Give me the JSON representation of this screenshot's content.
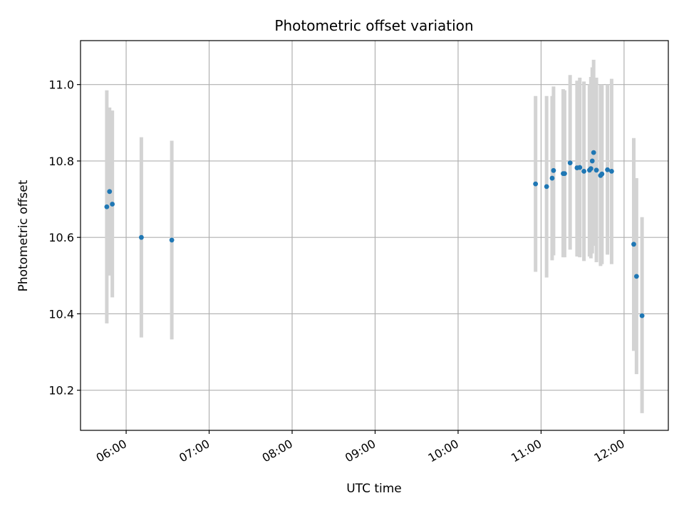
{
  "chart_data": {
    "type": "scatter",
    "title": "Photometric offset variation",
    "xlabel": "UTC time",
    "ylabel": "Photometric offset",
    "x_axis_kind": "time",
    "xlim": [
      "05:27",
      "12:32"
    ],
    "ylim": [
      10.095,
      11.115
    ],
    "x_ticks": [
      "06:00",
      "07:00",
      "08:00",
      "09:00",
      "10:00",
      "11:00",
      "12:00"
    ],
    "y_ticks": [
      10.2,
      10.4,
      10.6,
      10.8,
      11.0
    ],
    "y_tick_labels": [
      "10.2",
      "10.4",
      "10.6",
      "10.8",
      "11.0"
    ],
    "grid": true,
    "colors": {
      "points": "#1f77b4",
      "errorbars": "#d3d3d3",
      "grid": "#b0b0b0"
    },
    "series": [
      {
        "points": [
          {
            "x": "05:46",
            "y": 10.68,
            "yerr_low": 10.375,
            "yerr_high": 10.985
          },
          {
            "x": "05:48",
            "y": 10.72,
            "yerr_low": 10.5,
            "yerr_high": 10.94
          },
          {
            "x": "05:50",
            "y": 10.687,
            "yerr_low": 10.443,
            "yerr_high": 10.932
          },
          {
            "x": "06:11",
            "y": 10.6,
            "yerr_low": 10.338,
            "yerr_high": 10.862
          },
          {
            "x": "06:33",
            "y": 10.593,
            "yerr_low": 10.333,
            "yerr_high": 10.853
          },
          {
            "x": "10:56",
            "y": 10.74,
            "yerr_low": 10.51,
            "yerr_high": 10.97
          },
          {
            "x": "11:04",
            "y": 10.733,
            "yerr_low": 10.495,
            "yerr_high": 10.97
          },
          {
            "x": "11:08",
            "y": 10.755,
            "yerr_low": 10.54,
            "yerr_high": 10.97
          },
          {
            "x": "11:09",
            "y": 10.775,
            "yerr_low": 10.553,
            "yerr_high": 10.995
          },
          {
            "x": "11:16",
            "y": 10.767,
            "yerr_low": 10.548,
            "yerr_high": 10.988
          },
          {
            "x": "11:17",
            "y": 10.767,
            "yerr_low": 10.548,
            "yerr_high": 10.985
          },
          {
            "x": "11:21",
            "y": 10.795,
            "yerr_low": 10.568,
            "yerr_high": 11.025
          },
          {
            "x": "11:26",
            "y": 10.782,
            "yerr_low": 10.55,
            "yerr_high": 11.01
          },
          {
            "x": "11:28",
            "y": 10.783,
            "yerr_low": 10.548,
            "yerr_high": 11.018
          },
          {
            "x": "11:31",
            "y": 10.773,
            "yerr_low": 10.538,
            "yerr_high": 11.008
          },
          {
            "x": "11:35",
            "y": 10.776,
            "yerr_low": 10.55,
            "yerr_high": 11.0
          },
          {
            "x": "11:36",
            "y": 10.78,
            "yerr_low": 10.545,
            "yerr_high": 11.02
          },
          {
            "x": "11:37",
            "y": 10.8,
            "yerr_low": 10.558,
            "yerr_high": 11.045
          },
          {
            "x": "11:38",
            "y": 10.822,
            "yerr_low": 10.578,
            "yerr_high": 11.065
          },
          {
            "x": "11:40",
            "y": 10.776,
            "yerr_low": 10.535,
            "yerr_high": 11.018
          },
          {
            "x": "11:43",
            "y": 10.762,
            "yerr_low": 10.525,
            "yerr_high": 11.0
          },
          {
            "x": "11:44",
            "y": 10.766,
            "yerr_low": 10.53,
            "yerr_high": 11.0
          },
          {
            "x": "11:48",
            "y": 10.777,
            "yerr_low": 10.555,
            "yerr_high": 11.0
          },
          {
            "x": "11:51",
            "y": 10.773,
            "yerr_low": 10.53,
            "yerr_high": 11.015
          },
          {
            "x": "12:07",
            "y": 10.582,
            "yerr_low": 10.303,
            "yerr_high": 10.86
          },
          {
            "x": "12:09",
            "y": 10.498,
            "yerr_low": 10.242,
            "yerr_high": 10.755
          },
          {
            "x": "12:13",
            "y": 10.395,
            "yerr_low": 10.14,
            "yerr_high": 10.653
          }
        ]
      }
    ]
  }
}
